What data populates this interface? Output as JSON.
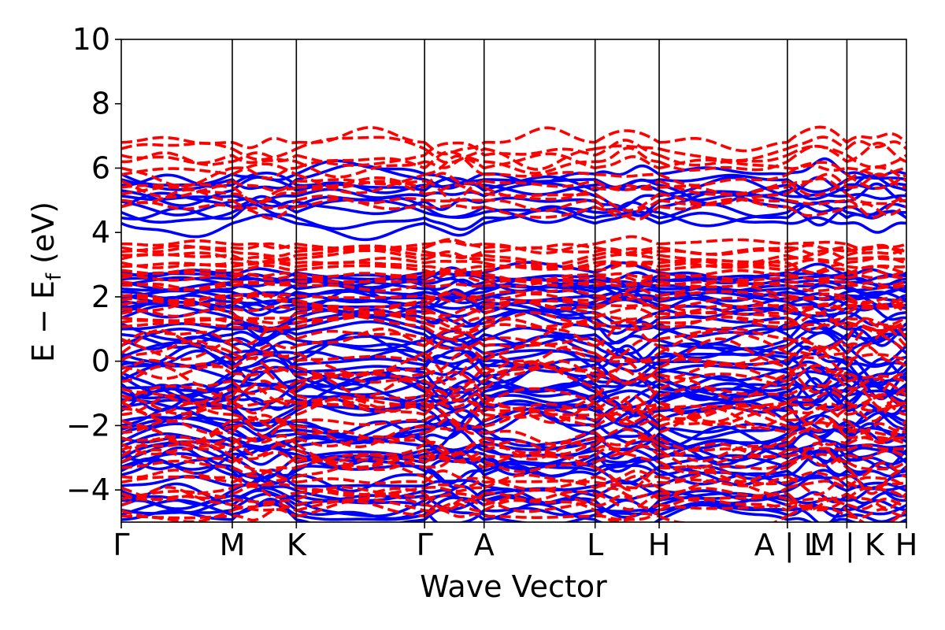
{
  "chart_data": {
    "type": "line",
    "title": "",
    "xlabel": "Wave Vector",
    "ylabel": "E − E",
    "ylabel_subscript": "f",
    "ylabel_unit": " (eV)",
    "ylim": [
      -5,
      10
    ],
    "yticks": [
      "10",
      "8",
      "6",
      "4",
      "2",
      "0",
      "−2",
      "−4"
    ],
    "ytick_values": [
      10,
      8,
      6,
      4,
      2,
      0,
      -2,
      -4
    ],
    "kpoints": [
      {
        "label": "Γ",
        "k": 0.0
      },
      {
        "label": "M",
        "k": 1.0
      },
      {
        "label": "K",
        "k": 1.577
      },
      {
        "label": "Γ",
        "k": 2.732
      },
      {
        "label": "A",
        "k": 3.268
      },
      {
        "label": "L",
        "k": 4.268
      },
      {
        "label": "H",
        "k": 4.845
      },
      {
        "label": "A | L",
        "k": 6.0
      },
      {
        "label": "M | K",
        "k": 6.536
      },
      {
        "label": "H",
        "k": 7.072
      }
    ],
    "grid": false,
    "series": [
      {
        "style": "solid",
        "color": "#0000ff"
      },
      {
        "style": "dashed",
        "color": "#ff0000"
      }
    ]
  }
}
